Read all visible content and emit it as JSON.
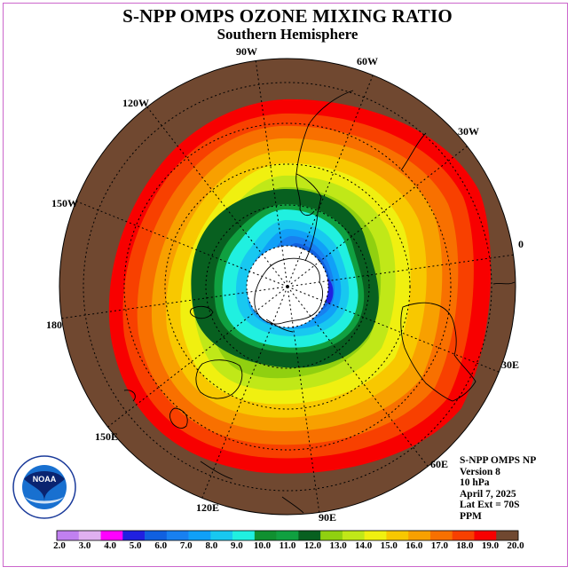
{
  "title": "S-NPP OMPS OZONE MIXING RATIO",
  "subtitle": "Southern Hemisphere",
  "longitude_labels": [
    "90W",
    "60W",
    "120W",
    "30W",
    "150W",
    "0",
    "180",
    "30E",
    "150E",
    "60E",
    "120E",
    "90E"
  ],
  "info": {
    "line1": "S-NPP OMPS NP",
    "line2": "Version 8",
    "line3": "10 hPa",
    "line4": "April 7, 2025",
    "line5": "Lat Ext = 70S",
    "line6": "PPM"
  },
  "logo": {
    "text": "NOAA",
    "ring_text": "NATIONAL OCEANIC AND ATMOSPHERIC ADMINISTRATION · U.S. DEPARTMENT OF COMMERCE"
  },
  "colorbar": {
    "colors": [
      "#c080f0",
      "#e0b0f0",
      "#ff00ff",
      "#2020e0",
      "#1060e0",
      "#1880f0",
      "#10a0f8",
      "#18c8f0",
      "#20f0e0",
      "#109030",
      "#10a040",
      "#086020",
      "#90d010",
      "#c0e818",
      "#f0f010",
      "#f8c800",
      "#f8a000",
      "#f87000",
      "#f84000",
      "#f80000",
      "#704830"
    ],
    "labels": [
      "2.0",
      "3.0",
      "4.0",
      "5.0",
      "6.0",
      "7.0",
      "8.0",
      "9.0",
      "10.0",
      "11.0",
      "12.0",
      "13.0",
      "14.0",
      "15.0",
      "16.0",
      "17.0",
      "18.0",
      "19.0",
      "20.0"
    ]
  }
}
